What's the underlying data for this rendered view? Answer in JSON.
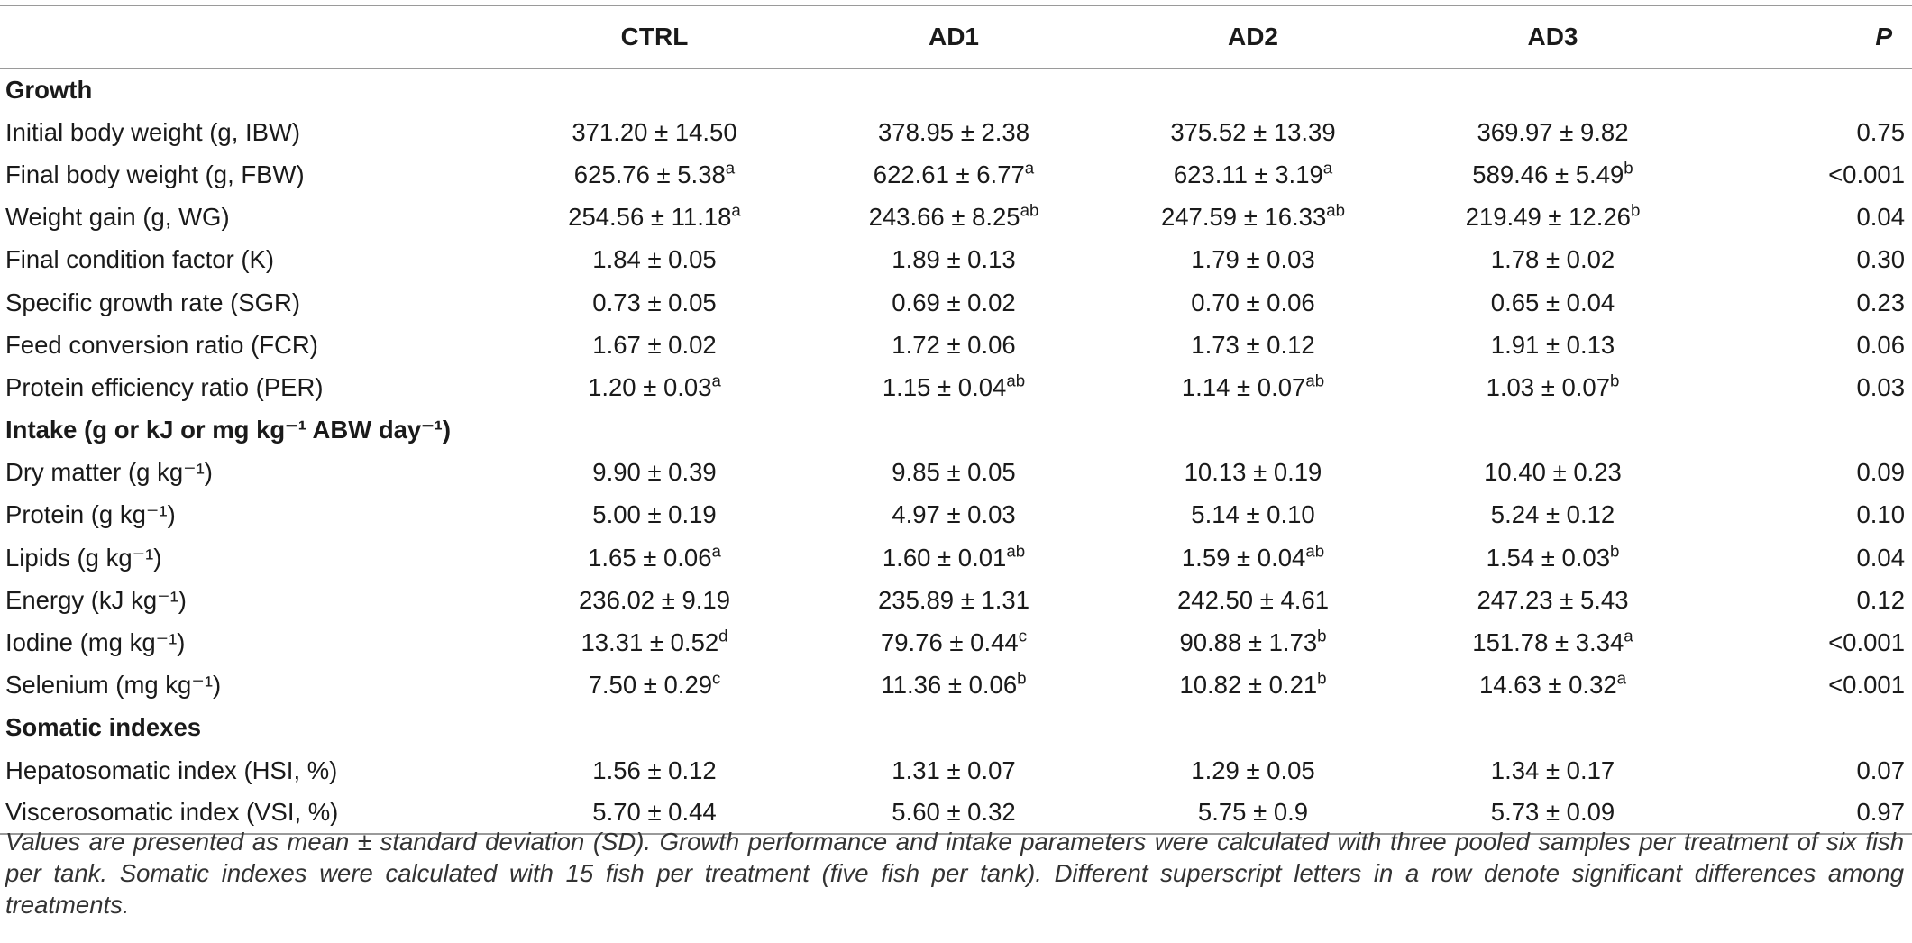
{
  "columns": [
    "",
    "CTRL",
    "AD1",
    "AD2",
    "AD3",
    "P"
  ],
  "sections": [
    {
      "title": "Growth",
      "rows": [
        {
          "label": "Initial body weight (g, IBW)",
          "cells": [
            {
              "v": "371.20 ± 14.50",
              "s": ""
            },
            {
              "v": "378.95 ± 2.38",
              "s": ""
            },
            {
              "v": "375.52 ± 13.39",
              "s": ""
            },
            {
              "v": "369.97 ± 9.82",
              "s": ""
            }
          ],
          "p": "0.75"
        },
        {
          "label": "Final body weight (g, FBW)",
          "cells": [
            {
              "v": "625.76 ± 5.38",
              "s": "a"
            },
            {
              "v": "622.61 ± 6.77",
              "s": "a"
            },
            {
              "v": "623.11 ± 3.19",
              "s": "a"
            },
            {
              "v": "589.46 ± 5.49",
              "s": "b"
            }
          ],
          "p": "<0.001"
        },
        {
          "label": "Weight gain (g, WG)",
          "cells": [
            {
              "v": "254.56 ± 11.18",
              "s": "a"
            },
            {
              "v": "243.66 ± 8.25",
              "s": "ab"
            },
            {
              "v": "247.59 ± 16.33",
              "s": "ab"
            },
            {
              "v": "219.49 ± 12.26",
              "s": "b"
            }
          ],
          "p": "0.04"
        },
        {
          "label": "Final condition factor (K)",
          "cells": [
            {
              "v": "1.84 ± 0.05",
              "s": ""
            },
            {
              "v": "1.89 ± 0.13",
              "s": ""
            },
            {
              "v": "1.79 ± 0.03",
              "s": ""
            },
            {
              "v": "1.78 ± 0.02",
              "s": ""
            }
          ],
          "p": "0.30"
        },
        {
          "label": "Specific growth rate (SGR)",
          "cells": [
            {
              "v": "0.73 ± 0.05",
              "s": ""
            },
            {
              "v": "0.69 ± 0.02",
              "s": ""
            },
            {
              "v": "0.70 ± 0.06",
              "s": ""
            },
            {
              "v": "0.65 ± 0.04",
              "s": ""
            }
          ],
          "p": "0.23"
        },
        {
          "label": "Feed conversion ratio (FCR)",
          "cells": [
            {
              "v": "1.67 ± 0.02",
              "s": ""
            },
            {
              "v": "1.72 ± 0.06",
              "s": ""
            },
            {
              "v": "1.73 ± 0.12",
              "s": ""
            },
            {
              "v": "1.91 ± 0.13",
              "s": ""
            }
          ],
          "p": "0.06"
        },
        {
          "label": "Protein efficiency ratio (PER)",
          "cells": [
            {
              "v": "1.20 ± 0.03",
              "s": "a"
            },
            {
              "v": "1.15 ± 0.04",
              "s": "ab"
            },
            {
              "v": "1.14 ± 0.07",
              "s": "ab"
            },
            {
              "v": "1.03 ± 0.07",
              "s": "b"
            }
          ],
          "p": "0.03"
        }
      ]
    },
    {
      "title": "Intake (g or kJ or mg kg⁻¹ ABW day⁻¹)",
      "rows": [
        {
          "label": "Dry matter (g kg⁻¹)",
          "cells": [
            {
              "v": "9.90 ± 0.39",
              "s": ""
            },
            {
              "v": "9.85 ± 0.05",
              "s": ""
            },
            {
              "v": "10.13 ± 0.19",
              "s": ""
            },
            {
              "v": "10.40 ± 0.23",
              "s": ""
            }
          ],
          "p": "0.09"
        },
        {
          "label": "Protein (g kg⁻¹)",
          "cells": [
            {
              "v": "5.00 ± 0.19",
              "s": ""
            },
            {
              "v": "4.97 ± 0.03",
              "s": ""
            },
            {
              "v": "5.14 ± 0.10",
              "s": ""
            },
            {
              "v": "5.24 ± 0.12",
              "s": ""
            }
          ],
          "p": "0.10"
        },
        {
          "label": "Lipids (g kg⁻¹)",
          "cells": [
            {
              "v": "1.65 ± 0.06",
              "s": "a"
            },
            {
              "v": "1.60 ± 0.01",
              "s": "ab"
            },
            {
              "v": "1.59 ± 0.04",
              "s": "ab"
            },
            {
              "v": "1.54 ± 0.03",
              "s": "b"
            }
          ],
          "p": "0.04"
        },
        {
          "label": "Energy (kJ kg⁻¹)",
          "cells": [
            {
              "v": "236.02 ± 9.19",
              "s": ""
            },
            {
              "v": "235.89 ± 1.31",
              "s": ""
            },
            {
              "v": "242.50 ± 4.61",
              "s": ""
            },
            {
              "v": "247.23 ± 5.43",
              "s": ""
            }
          ],
          "p": "0.12"
        },
        {
          "label": "Iodine (mg kg⁻¹)",
          "cells": [
            {
              "v": "13.31 ± 0.52",
              "s": "d"
            },
            {
              "v": "79.76 ± 0.44",
              "s": "c"
            },
            {
              "v": "90.88 ± 1.73",
              "s": "b"
            },
            {
              "v": "151.78 ± 3.34",
              "s": "a"
            }
          ],
          "p": "<0.001"
        },
        {
          "label": "Selenium (mg kg⁻¹)",
          "cells": [
            {
              "v": "7.50 ± 0.29",
              "s": "c"
            },
            {
              "v": "11.36 ± 0.06",
              "s": "b"
            },
            {
              "v": "10.82 ± 0.21",
              "s": "b"
            },
            {
              "v": "14.63 ± 0.32",
              "s": "a"
            }
          ],
          "p": "<0.001"
        }
      ]
    },
    {
      "title": "Somatic indexes",
      "rows": [
        {
          "label": "Hepatosomatic index (HSI, %)",
          "cells": [
            {
              "v": "1.56 ± 0.12",
              "s": ""
            },
            {
              "v": "1.31 ± 0.07",
              "s": ""
            },
            {
              "v": "1.29 ± 0.05",
              "s": ""
            },
            {
              "v": "1.34 ± 0.17",
              "s": ""
            }
          ],
          "p": "0.07"
        },
        {
          "label": "Viscerosomatic index (VSI, %)",
          "cells": [
            {
              "v": "5.70 ± 0.44",
              "s": ""
            },
            {
              "v": "5.60 ± 0.32",
              "s": ""
            },
            {
              "v": "5.75 ± 0.9",
              "s": ""
            },
            {
              "v": "5.73 ± 0.09",
              "s": ""
            }
          ],
          "p": "0.97"
        }
      ]
    }
  ],
  "footnote": "Values are presented as mean ± standard deviation (SD). Growth performance and intake parameters were calculated with three pooled samples per treatment of six fish per tank. Somatic indexes were calculated with 15 fish per treatment (five fish per tank). Different superscript letters in a row denote significant differences among treatments."
}
